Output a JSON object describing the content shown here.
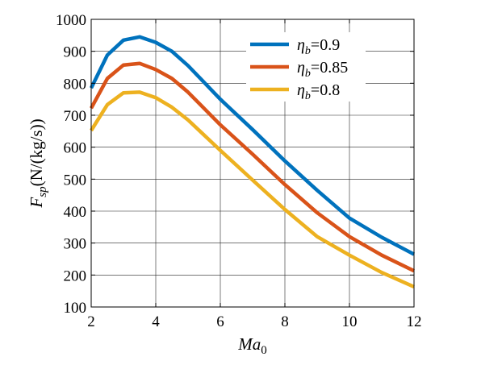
{
  "chart_data": {
    "type": "line",
    "title": "",
    "xlabel": {
      "main": "Ma",
      "sub": "0"
    },
    "ylabel": {
      "main": "F",
      "sub": "sp",
      "unit": "(N/(kg/s))"
    },
    "xlim": [
      2,
      12
    ],
    "ylim": [
      100,
      1000
    ],
    "xticks": [
      2,
      4,
      6,
      8,
      10,
      12
    ],
    "yticks": [
      100,
      200,
      300,
      400,
      500,
      600,
      700,
      800,
      900,
      1000
    ],
    "grid": true,
    "legend_position": "top-right",
    "x": [
      2,
      2.5,
      3,
      3.5,
      4,
      4.5,
      5,
      6,
      7,
      8,
      9,
      10,
      11,
      12
    ],
    "series": [
      {
        "name": {
          "sym": "η",
          "sub": "b",
          "val": "=0.9"
        },
        "color": "#0072BD",
        "values": [
          785,
          888,
          935,
          945,
          928,
          900,
          855,
          750,
          655,
          557,
          465,
          378,
          318,
          265
        ]
      },
      {
        "name": {
          "sym": "η",
          "sub": "b",
          "val": "=0.85"
        },
        "color": "#D95319",
        "values": [
          722,
          815,
          857,
          862,
          843,
          815,
          772,
          670,
          578,
          483,
          395,
          320,
          262,
          213
        ]
      },
      {
        "name": {
          "sym": "η",
          "sub": "b",
          "val": "=0.8"
        },
        "color": "#EDB120",
        "values": [
          652,
          733,
          770,
          772,
          755,
          725,
          685,
          590,
          497,
          405,
          320,
          262,
          208,
          163
        ]
      }
    ]
  }
}
